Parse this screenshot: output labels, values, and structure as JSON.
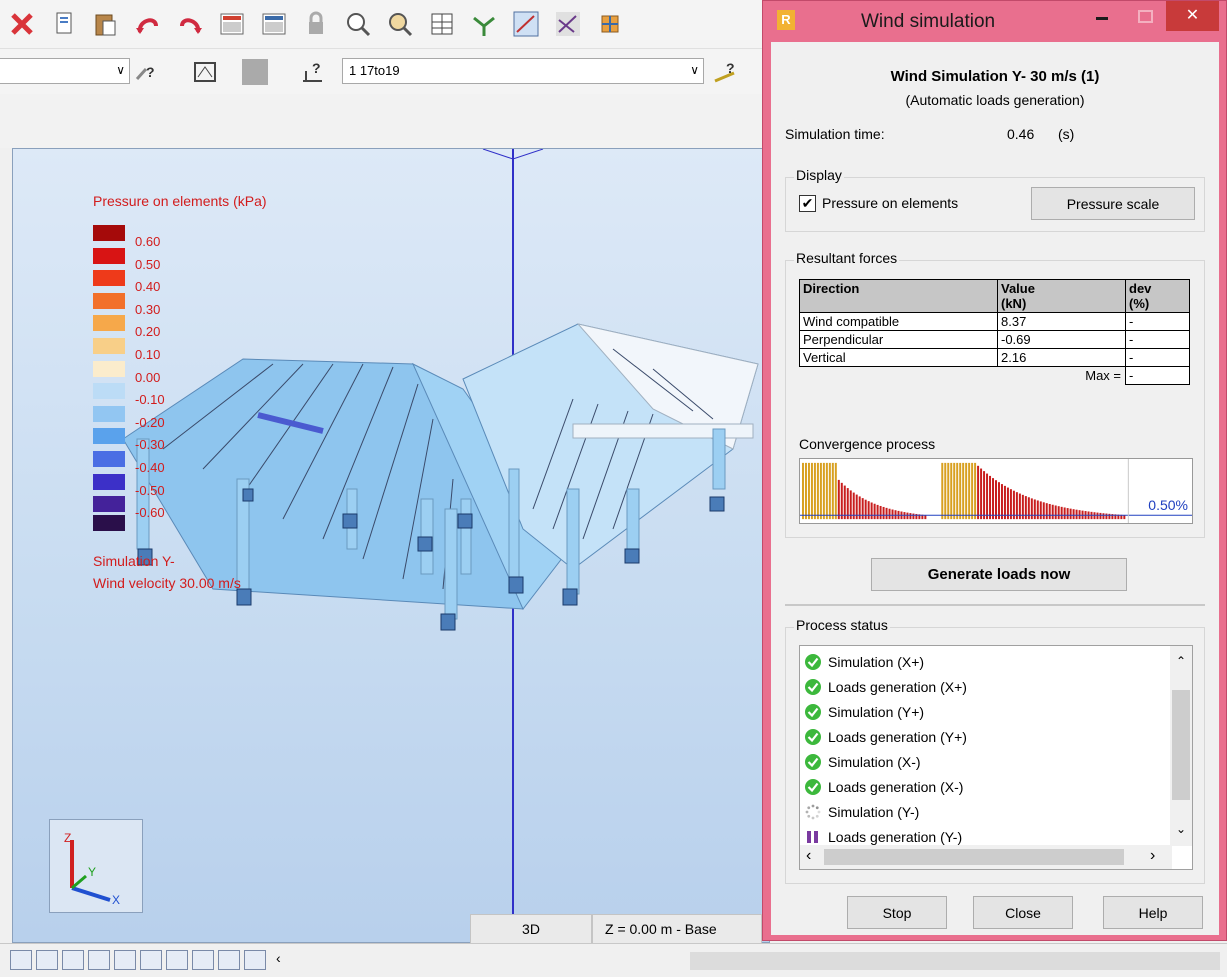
{
  "toolbar": {
    "floor_combo": "",
    "case_combo": "1 17to19"
  },
  "legend": {
    "title": "Pressure on elements (kPa)",
    "entries": [
      {
        "value": "0.60",
        "color": "#a50a0a"
      },
      {
        "value": "0.50",
        "color": "#d81414"
      },
      {
        "value": "0.40",
        "color": "#ee3a1a"
      },
      {
        "value": "0.30",
        "color": "#f2702a"
      },
      {
        "value": "0.20",
        "color": "#f6a84a"
      },
      {
        "value": "0.10",
        "color": "#f8cf88"
      },
      {
        "value": "0.00",
        "color": "#fbeccc"
      },
      {
        "value": "-0.10",
        "color": "#bcdcf6"
      },
      {
        "value": "-0.20",
        "color": "#92c6f2"
      },
      {
        "value": "-0.30",
        "color": "#5aa2ec"
      },
      {
        "value": "-0.40",
        "color": "#4a6ee4"
      },
      {
        "value": "-0.50",
        "color": "#3c30c8"
      },
      {
        "value": "-0.60",
        "color": "#44229a"
      }
    ],
    "extra_swatch_color": "#2a0f4a",
    "simulation_line": "Simulation Y-",
    "velocity_line": "Wind velocity 30.00 m/s"
  },
  "view": {
    "tab_3d": "3D",
    "level": "Z = 0.00 m - Base"
  },
  "dialog": {
    "window_title": "Wind simulation",
    "heading": "Wind Simulation Y- 30 m/s (1)",
    "subheading": "(Automatic loads generation)",
    "simulation_time_label": "Simulation time:",
    "simulation_time_value": "0.46",
    "simulation_time_unit": "(s)",
    "display_group": "Display",
    "pressure_checkbox_label": "Pressure on elements",
    "pressure_checked": true,
    "pressure_scale_button": "Pressure scale",
    "resultant_group": "Resultant forces",
    "table": {
      "headers": [
        [
          "Direction"
        ],
        [
          "Value",
          "(kN)"
        ],
        [
          "dev",
          "(%)"
        ]
      ],
      "rows": [
        {
          "direction": "Wind compatible",
          "value": "8.37",
          "dev": "-"
        },
        {
          "direction": "Perpendicular",
          "value": "-0.69",
          "dev": "-"
        },
        {
          "direction": "Vertical",
          "value": "2.16",
          "dev": "-"
        }
      ],
      "max_label": "Max =",
      "max_value": "-"
    },
    "convergence_label": "Convergence process",
    "convergence_percent": "0.50%",
    "generate_button": "Generate loads now",
    "process_group": "Process status",
    "process_items": [
      {
        "label": "Simulation (X+)",
        "state": "done"
      },
      {
        "label": "Loads generation (X+)",
        "state": "done"
      },
      {
        "label": "Simulation (Y+)",
        "state": "done"
      },
      {
        "label": "Loads generation (Y+)",
        "state": "done"
      },
      {
        "label": "Simulation (X-)",
        "state": "done"
      },
      {
        "label": "Loads generation (X-)",
        "state": "done"
      },
      {
        "label": "Simulation (Y-)",
        "state": "running"
      },
      {
        "label": "Loads generation (Y-)",
        "state": "paused"
      }
    ],
    "stop_button": "Stop",
    "close_button": "Close",
    "help_button": "Help"
  }
}
